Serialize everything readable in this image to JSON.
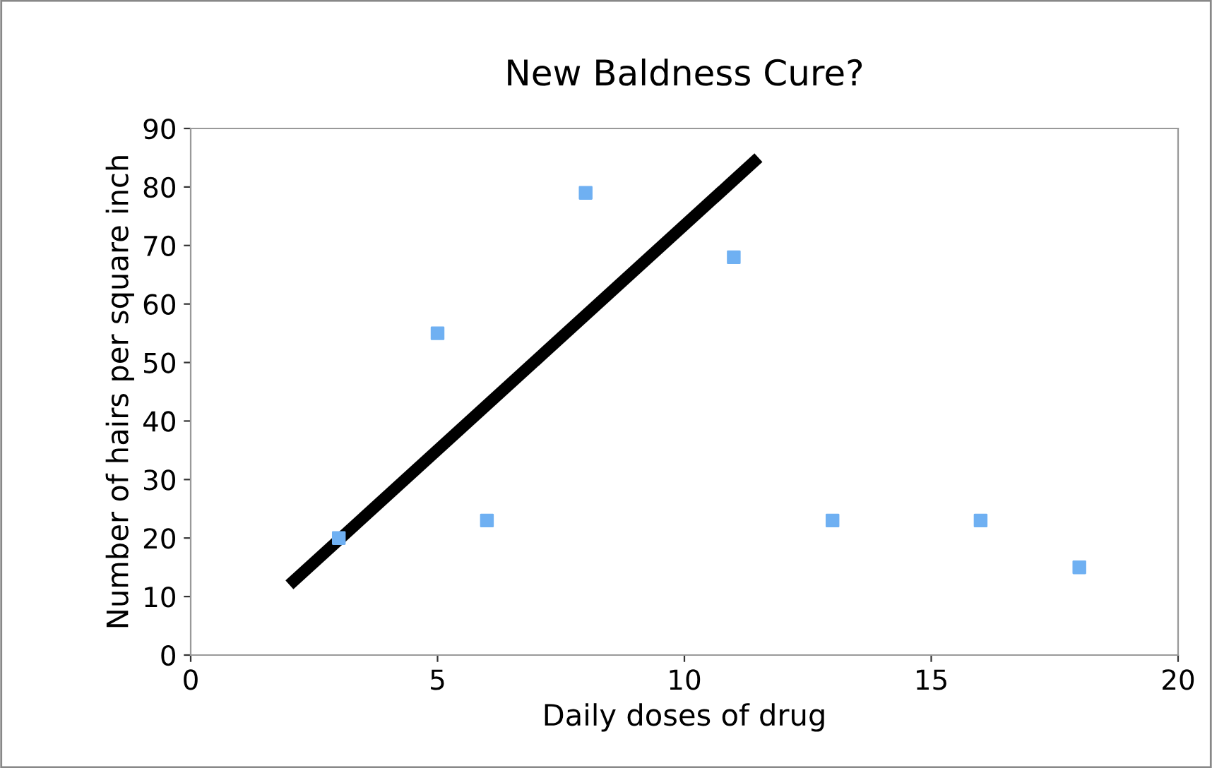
{
  "chart_data": {
    "type": "scatter",
    "title": "New Baldness Cure?",
    "xlabel": "Daily doses of drug",
    "ylabel": "Number of hairs per square inch",
    "xlim": [
      0,
      20
    ],
    "xticks": [
      0,
      5,
      10,
      15,
      20
    ],
    "ylim": [
      0,
      90
    ],
    "yticks": [
      0,
      10,
      20,
      30,
      40,
      50,
      60,
      70,
      80,
      90
    ],
    "grid": false,
    "legend": false,
    "marker": "square",
    "series": [
      {
        "color": "#6fb0f2",
        "x": [
          3,
          5,
          6,
          8,
          11,
          13,
          16,
          18
        ],
        "values": [
          20,
          55,
          23,
          79,
          68,
          23,
          23,
          15
        ]
      },
      {
        "type": "line",
        "color": "#000000",
        "x": [
          2,
          11.5
        ],
        "values": [
          12,
          85
        ],
        "marker": "none",
        "line_style": "solid"
      }
    ]
  }
}
